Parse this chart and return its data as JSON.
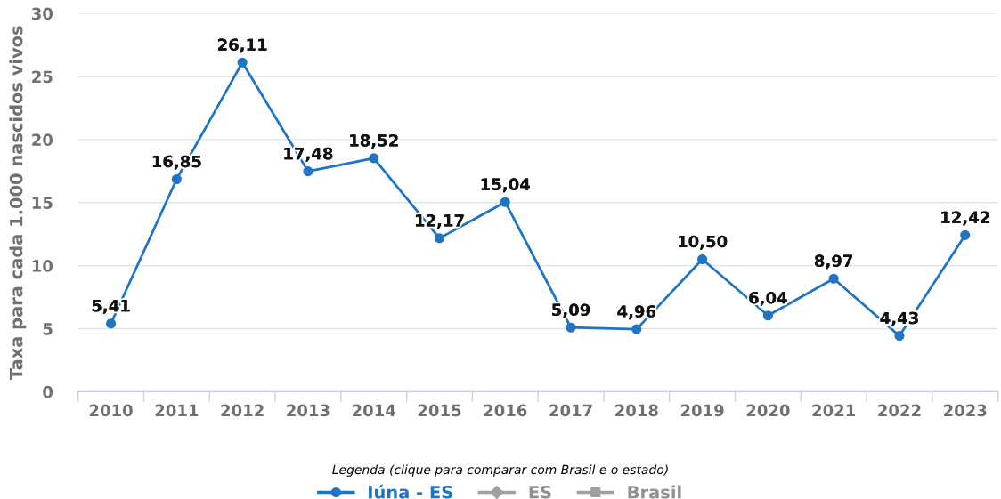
{
  "chart_data": {
    "type": "line",
    "ylabel": "Taxa para cada 1.000 nascidos vivos",
    "categories": [
      "2010",
      "2011",
      "2012",
      "2013",
      "2014",
      "2015",
      "2016",
      "2017",
      "2018",
      "2019",
      "2020",
      "2021",
      "2022",
      "2023"
    ],
    "series": [
      {
        "name": "Iúna - ES",
        "color": "#1f74c4",
        "values": [
          5.41,
          16.85,
          26.11,
          17.48,
          18.52,
          12.17,
          15.04,
          5.09,
          4.96,
          10.5,
          6.04,
          8.97,
          4.43,
          12.42
        ],
        "value_labels": [
          "5,41",
          "16,85",
          "26,11",
          "17,48",
          "18,52",
          "12,17",
          "15,04",
          "5,09",
          "4,96",
          "10,50",
          "6,04",
          "8,97",
          "4,43",
          "12,42"
        ]
      },
      {
        "name": "ES",
        "color": "#a0a0a0",
        "marker": "diamond",
        "values": [
          null,
          null,
          null,
          null,
          null,
          null,
          null,
          null,
          null,
          null,
          null,
          null,
          null,
          null
        ]
      },
      {
        "name": "Brasil",
        "color": "#a0a0a0",
        "marker": "square",
        "values": [
          null,
          null,
          null,
          null,
          null,
          null,
          null,
          null,
          null,
          null,
          null,
          null,
          null,
          null
        ]
      }
    ],
    "ylim": [
      0,
      30
    ],
    "yticks": [
      0,
      5,
      10,
      15,
      20,
      25,
      30
    ],
    "grid": "y",
    "legend": "bottom",
    "legend_title": "Legenda (clique para comparar com Brasil e o estado)",
    "marker": "circle",
    "line_style": "solid"
  }
}
